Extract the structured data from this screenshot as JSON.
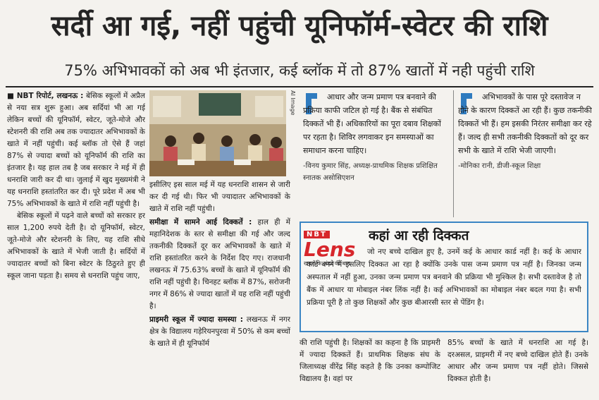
{
  "headline": "सर्दी आ गई, नहीं पहुंची यूनिफॉर्म-स्वेटर की राशि",
  "subheadline": "75% अभिभावकों को अब भी इंतजार, कई ब्लॉक में तो 87% खातों में नही पहुंची राशि",
  "column1": {
    "dateline": "NBT रिपोर्ट, लखनऊ :",
    "paragraphs": [
      "बेसिक स्कूलों में अप्रैल से नया सत्र शुरू हुआ। अब सर्दियां भी आ गई लेकिन बच्चों की यूनिफॉर्म, स्वेटर, जूते-मोजे और स्टेशनरी की राशि अब तक ज्यादातर अभिभावकों के खाते में नहीं पहुंची। कई ब्लॉक तो ऐसे हैं जहां 87% से ज्यादा बच्चों को यूनिफॉर्म की राशि का इंतजार है। यह हाल तब है जब सरकार ने मई में ही धनराशि जारी कर दी था। जुलाई में खुद मुख्यमंत्री ने यह धनराशि हस्तांतरित कर दी। पूरे प्रदेश में अब भी 75% अभिभावकों के खाते में राशि नहीं पहुंची है।",
      "बेसिक स्कूलों में पढ़ने वाले बच्चों को सरकार हर साल 1,200 रुपये देती है। दो यूनिफॉर्म, स्वेटर, जूते-मोजे और स्टेशनरी के लिए, यह राशि सीधे अभिभावकों के खाते में भेजी जाती है। सर्दियों में ज्यादातर बच्चों को बिना स्वेटर के ठिठुरते हुए ही स्कूल जाना पड़ता है। समय से धनराशि पहुंच जाए,"
    ]
  },
  "image_credit": "AI Image",
  "column2": {
    "intro": "इसीलिए इस साल मई में यह धनराशि शासन से जारी कर दी गई थी। फिर भी ज्यादातर अभिभावकों के खाते में राशि नहीं पहुंची।",
    "sections": [
      {
        "heading": "समीक्षा में सामने आई दिक्कतें :",
        "text": "हाल ही में महानिदेशक के स्तर से समीक्षा की गई और जल्द तकनीकी दिक्कतें दूर कर अभिभावकों के खाते में राशि हस्तांतरित करने के निर्देश दिए गए। राजधानी लखनऊ में 75.63% बच्चों के खाते में यूनिफॉर्म की राशि नहीं पहुंची है। चिनहट ब्लॉक में 87%, सरोजनी नगर में 86% से ज्यादा खातों में यह राशि नहीं पहुंची है।"
      },
      {
        "heading": "प्राइमरी स्कूल में ज्यादा समस्या :",
        "text": "लखनऊ में नगर क्षेत्र के विद्यालय गड़ेरियनपुरवा में 50% से कम बच्चों के खाते में ही यूनिफॉर्म"
      }
    ]
  },
  "quotes": [
    {
      "text": "आधार और जन्म प्रमाण पत्र बनवाने की प्रक्रिया काफी जटिल हो गई है। बैंक से संबंधित दिक्कतें भी हैं। अधिकारियों का पूरा दबाव शिक्षकों पर रहता है। शिविर लगवाकर इन समस्याओं का समाधान करना चाहिए।",
      "attribution": "-विनय कुमार सिंह, अध्यक्ष-प्राथमिक शिक्षक प्रशिक्षित स्नातक असोसिएशन"
    },
    {
      "text": "अभिभावकों के पास पूरे दस्तावेज न होने के कारण दिक्कतें आ रही हैं। कुछ तकनीकी दिक्कतें भी हैं। हम इसकी निरंतर समीक्षा कर रहे हैं। जल्द ही सभी तकनीकी दिक्कतों को दूर कर सभी के खाते में राशि भेजी जाएगी।",
      "attribution": "-मोनिका रानी, डीजी-स्कूल शिक्षा"
    }
  ],
  "lens": {
    "brand": "NBT",
    "logo": "Lens",
    "tagline": "खबरों के अंदर की बात",
    "title": "कहां आ रही दिक्कत",
    "text": "जो नए बच्चे दाखिल हुए है, उनमें कई के आधार कार्ड नहीं है। कई के आधार कार्ड बनने में इसलिए दिक्कत आ रहा है क्योंकि उनके पास जन्म प्रमाण पत्र नहीं है। जिनका जन्म अस्पताल में नहीं हुआ, उनका जन्म प्रमाण पत्र बनवाने की प्रक्रिया भी मुश्किल है। सभी दस्तावेज है तो बैंक में आधार या मोबाइल नंबर लिंक नहीं है। कई अभिभावकों का मोबाइल नंबर बदल गया है। सभी प्रक्रिया पूरी है तो कुछ शिक्षकों और कुछ बीआरसी स्तर से पेंडिंग है।"
  },
  "column3": "की राशि पहुंची है। शिक्षकों का कहना है कि प्राइमरी में ज्यादा दिक्कतें हैं। प्राथमिक शिक्षक संघ के जिलाध्यक्ष वीरेंद्र सिंह कहते है कि उनका कम्पोजिट विद्यालय है। वहां पर",
  "column4": "85% बच्चों के खाते में धनराशि आ गई है। दरअसल, प्राइमरी में नए बच्चे दाखिल होते हैं। उनके आधार और जन्म प्रमाण पत्र नहीं होते। जिससे दिक्कत होती है।"
}
